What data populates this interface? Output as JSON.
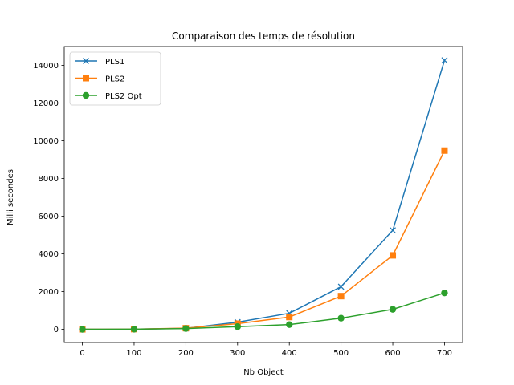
{
  "chart_data": {
    "type": "line",
    "title": "Comparaison des temps de résolution",
    "xlabel": "Nb Object",
    "ylabel": "Milli secondes",
    "x": [
      0,
      100,
      200,
      300,
      400,
      500,
      600,
      700
    ],
    "xlim": [
      -35,
      735
    ],
    "ylim": [
      -700,
      15000
    ],
    "xticks": [
      0,
      100,
      200,
      300,
      400,
      500,
      600,
      700
    ],
    "yticks": [
      0,
      2000,
      4000,
      6000,
      8000,
      10000,
      12000,
      14000
    ],
    "grid": false,
    "legend_position": "top-left",
    "series": [
      {
        "name": "PLS1",
        "color": "#1f77b4",
        "marker": "x",
        "values": [
          0,
          10,
          50,
          380,
          850,
          2260,
          5250,
          14270
        ]
      },
      {
        "name": "PLS2",
        "color": "#ff7f0e",
        "marker": "square",
        "values": [
          0,
          10,
          60,
          300,
          650,
          1760,
          3920,
          9480
        ]
      },
      {
        "name": "PLS2 Opt",
        "color": "#2ca02c",
        "marker": "circle",
        "values": [
          0,
          5,
          40,
          140,
          250,
          590,
          1060,
          1930
        ]
      }
    ]
  }
}
